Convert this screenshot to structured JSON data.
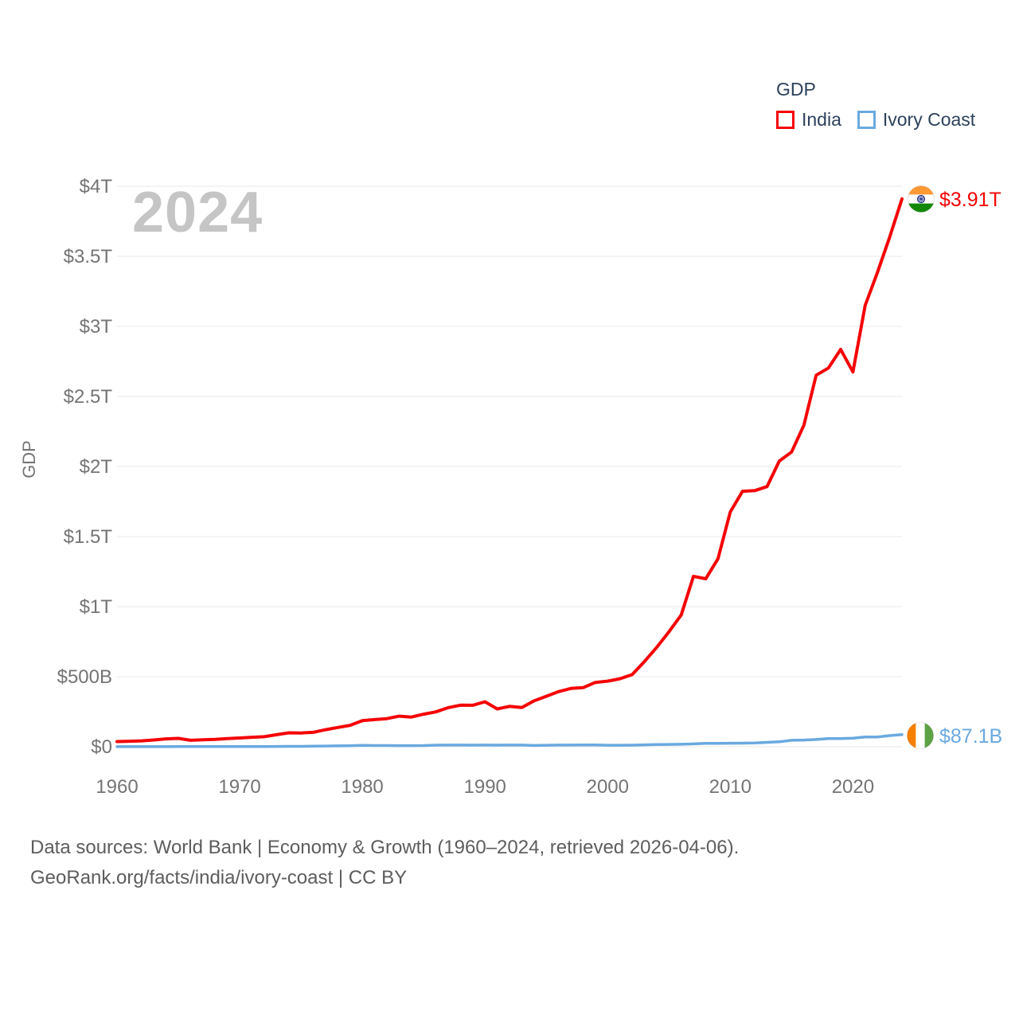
{
  "legend": {
    "title": "GDP",
    "items": [
      {
        "label": "India",
        "color": "#f40404"
      },
      {
        "label": "Ivory Coast",
        "color": "#6aa9e0"
      }
    ]
  },
  "watermark": "2024",
  "footer": {
    "line1": "Data sources: World Bank | Economy & Growth (1960–2024, retrieved 2026-04-06).",
    "line2": "GeoRank.org/facts/india/ivory-coast | CC BY"
  },
  "colors": {
    "india_line": "#f40404",
    "ivory_coast_line": "#6aa9e0",
    "tick_label": "#747474",
    "legend_text": "#2c415c",
    "watermark": "#c5c5c5",
    "gridline": "#e9e9e9",
    "footer_text": "#5d5d5d",
    "background": "#ffffff"
  },
  "chart_data": {
    "type": "line",
    "title": "GDP",
    "xlabel": "",
    "ylabel": "GDP",
    "unit": "billion USD (current)",
    "grid": "horizontal",
    "legend_position": "top-right",
    "x_range": [
      1960,
      2024
    ],
    "y_range_billions": [
      0,
      4000
    ],
    "x_ticks": [
      1960,
      1970,
      1980,
      1990,
      2000,
      2010,
      2020
    ],
    "y_ticks": [
      {
        "value": 0,
        "label": "$0"
      },
      {
        "value": 500,
        "label": "$500B"
      },
      {
        "value": 1000,
        "label": "$1T"
      },
      {
        "value": 1500,
        "label": "$1.5T"
      },
      {
        "value": 2000,
        "label": "$2T"
      },
      {
        "value": 2500,
        "label": "$2.5T"
      },
      {
        "value": 3000,
        "label": "$3T"
      },
      {
        "value": 3500,
        "label": "$3.5T"
      },
      {
        "value": 4000,
        "label": "$4T"
      }
    ],
    "x": [
      1960,
      1961,
      1962,
      1963,
      1964,
      1965,
      1966,
      1967,
      1968,
      1969,
      1970,
      1971,
      1972,
      1973,
      1974,
      1975,
      1976,
      1977,
      1978,
      1979,
      1980,
      1981,
      1982,
      1983,
      1984,
      1985,
      1986,
      1987,
      1988,
      1989,
      1990,
      1991,
      1992,
      1993,
      1994,
      1995,
      1996,
      1997,
      1998,
      1999,
      2000,
      2001,
      2002,
      2003,
      2004,
      2005,
      2006,
      2007,
      2008,
      2009,
      2010,
      2011,
      2012,
      2013,
      2014,
      2015,
      2016,
      2017,
      2018,
      2019,
      2020,
      2021,
      2022,
      2023,
      2024
    ],
    "series": [
      {
        "name": "India",
        "color": "#f40404",
        "end_label": "$3.91T",
        "values": [
          37.03,
          39.23,
          42.16,
          48.42,
          56.48,
          59.55,
          45.87,
          50.13,
          53.09,
          58.45,
          62.42,
          67.35,
          71.46,
          85.52,
          99.53,
          98.47,
          102.72,
          121.49,
          137.3,
          152.99,
          186.33,
          193.49,
          200.72,
          218.26,
          212.16,
          232.51,
          248.99,
          279.03,
          296.59,
          296.04,
          320.98,
          270.11,
          288.21,
          279.3,
          327.28,
          360.28,
          392.9,
          415.87,
          421.35,
          458.82,
          468.39,
          485.44,
          514.94,
          607.7,
          709.15,
          820.38,
          940.26,
          1216.74,
          1198.9,
          1341.89,
          1675.62,
          1823.05,
          1827.64,
          1856.72,
          2039.13,
          2103.59,
          2294.8,
          2651.47,
          2702.93,
          2835.61,
          2674.85,
          3150.31,
          3385.09,
          3638.0,
          3910.0
        ]
      },
      {
        "name": "Ivory Coast",
        "color": "#6aa9e0",
        "end_label": "$87.1B",
        "values": [
          0.55,
          0.62,
          0.64,
          0.75,
          0.84,
          0.92,
          1.01,
          1.08,
          1.26,
          1.38,
          1.4,
          1.52,
          1.74,
          2.31,
          2.85,
          3.03,
          3.85,
          5.09,
          6.21,
          7.11,
          10.18,
          8.69,
          8.41,
          7.77,
          7.78,
          8.73,
          11.21,
          12.02,
          11.8,
          11.08,
          11.91,
          11.53,
          12.08,
          11.73,
          8.84,
          11.0,
          12.14,
          11.72,
          12.61,
          12.39,
          10.72,
          10.94,
          11.49,
          13.74,
          15.49,
          16.37,
          17.37,
          20.32,
          24.23,
          24.28,
          24.88,
          25.38,
          27.04,
          31.29,
          35.37,
          45.81,
          47.94,
          51.59,
          58.01,
          58.54,
          61.35,
          69.77,
          70.02,
          79.43,
          87.1
        ]
      }
    ]
  }
}
